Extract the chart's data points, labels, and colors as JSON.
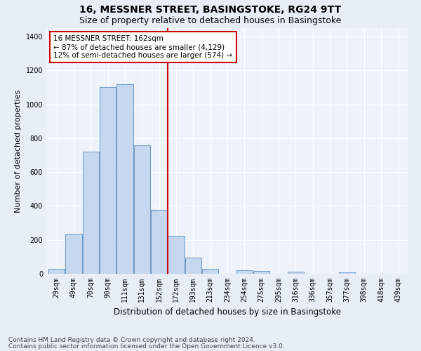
{
  "title": "16, MESSNER STREET, BASINGSTOKE, RG24 9TT",
  "subtitle": "Size of property relative to detached houses in Basingstoke",
  "xlabel": "Distribution of detached houses by size in Basingstoke",
  "ylabel": "Number of detached properties",
  "footer_line1": "Contains HM Land Registry data © Crown copyright and database right 2024.",
  "footer_line2": "Contains public sector information licensed under the Open Government Licence v3.0.",
  "categories": [
    "29sqm",
    "49sqm",
    "70sqm",
    "90sqm",
    "111sqm",
    "131sqm",
    "152sqm",
    "172sqm",
    "193sqm",
    "213sqm",
    "234sqm",
    "254sqm",
    "275sqm",
    "295sqm",
    "316sqm",
    "336sqm",
    "357sqm",
    "377sqm",
    "398sqm",
    "418sqm",
    "439sqm"
  ],
  "values": [
    28,
    235,
    720,
    1100,
    1120,
    760,
    375,
    225,
    95,
    27,
    0,
    20,
    17,
    0,
    14,
    0,
    0,
    10,
    0,
    0,
    0
  ],
  "bar_color": "#c5d8f0",
  "bar_edge_color": "#5a8fc0",
  "vline_x_index": 6.5,
  "vline_color": "#cc0000",
  "annotation_text": "16 MESSNER STREET: 162sqm\n← 87% of detached houses are smaller (4,129)\n12% of semi-detached houses are larger (574) →",
  "annotation_box_color": "#ffffff",
  "annotation_box_edge_color": "#cc0000",
  "ylim": [
    0,
    1450
  ],
  "yticks": [
    0,
    200,
    400,
    600,
    800,
    1000,
    1200,
    1400
  ],
  "bg_color": "#e8eef8",
  "plot_bg_color": "#eef2fb",
  "grid_color": "#ffffff",
  "title_fontsize": 10,
  "subtitle_fontsize": 9,
  "tick_fontsize": 7,
  "ylabel_fontsize": 8,
  "xlabel_fontsize": 8.5,
  "annotation_fontsize": 7.5,
  "footer_fontsize": 6.5
}
